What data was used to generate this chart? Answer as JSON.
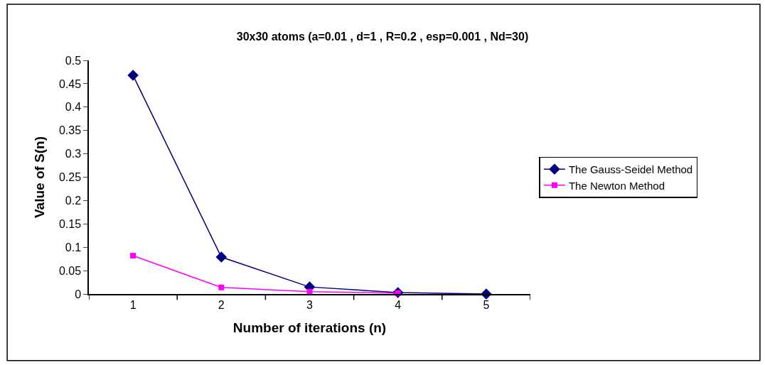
{
  "chart_data": {
    "type": "line",
    "title": "30x30 atoms (a=0.01 , d=1 , R=0.2 , esp=0.001 , Nd=30)",
    "xlabel": "Number of iterations (n)",
    "ylabel": "Value of S(n)",
    "categories": [
      "1",
      "2",
      "3",
      "4",
      "5"
    ],
    "series": [
      {
        "name": "The Gauss-Seidel Method",
        "color": "#000080",
        "marker": "diamond",
        "values": [
          0.468,
          0.079,
          0.015,
          0.003,
          0
        ]
      },
      {
        "name": "The Newton Method",
        "color": "#ff00ff",
        "marker": "square",
        "values": [
          0.082,
          0.014,
          0.005,
          0.002,
          null
        ]
      }
    ],
    "ylim": [
      0,
      0.5
    ],
    "yticks": [
      0,
      0.05,
      0.1,
      0.15,
      0.2,
      0.25,
      0.3,
      0.35,
      0.4,
      0.45,
      0.5
    ],
    "legend": "right",
    "line_style": "solid"
  }
}
